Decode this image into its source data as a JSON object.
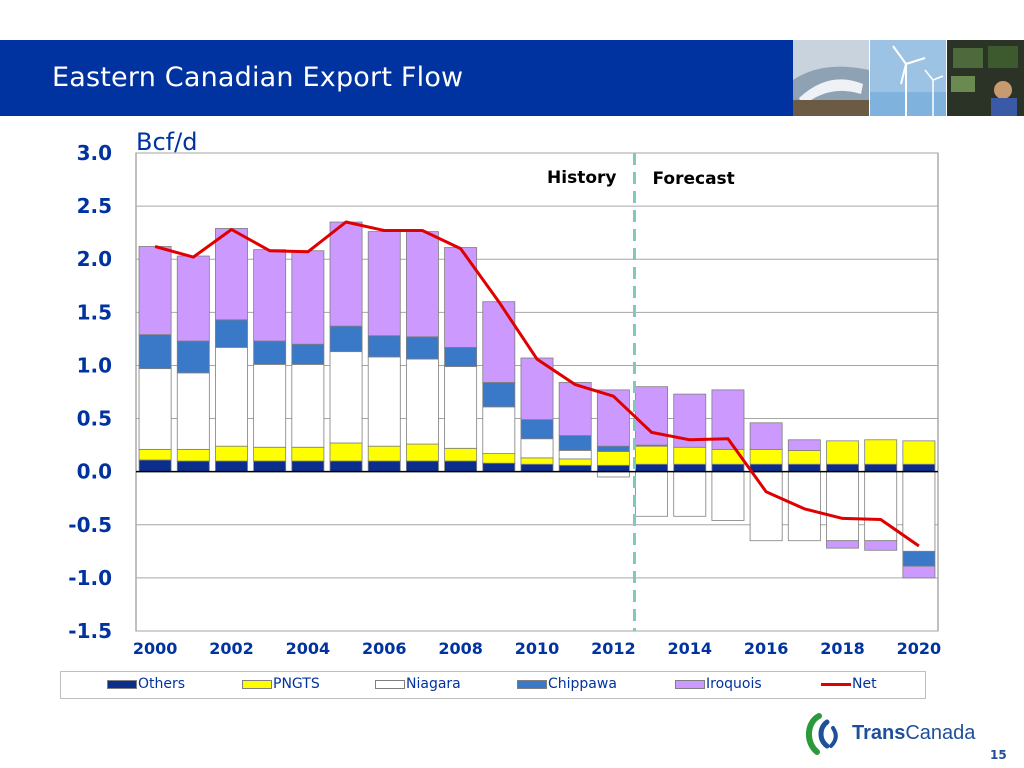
{
  "slide": {
    "title": "Eastern Canadian Export Flow",
    "page_number": "15",
    "header_color": "#0033a0"
  },
  "logo": {
    "text_bold": "Trans",
    "text_rest": "Canada",
    "icon": "transcanada-logo-icon"
  },
  "colors": {
    "Others": "#0b2e8c",
    "PNGTS": "#ffff00",
    "Niagara": "#ffffff",
    "Chippawa": "#3a78c8",
    "Iroquois": "#cc99ff",
    "Net": "#e00000",
    "divider": "#7fc8c0"
  },
  "chart_data": {
    "type": "bar",
    "stacked": true,
    "unit_label": "Bcf/d",
    "ylim": [
      -1.5,
      3.0
    ],
    "yticks": [
      "3.0",
      "2.5",
      "2.0",
      "1.5",
      "1.0",
      "0.5",
      "0.0",
      "-0.5",
      "-1.0",
      "-1.5"
    ],
    "ytick_values": [
      3.0,
      2.5,
      2.0,
      1.5,
      1.0,
      0.5,
      0.0,
      -0.5,
      -1.0,
      -1.5
    ],
    "years": [
      2000,
      2001,
      2002,
      2003,
      2004,
      2005,
      2006,
      2007,
      2008,
      2009,
      2010,
      2011,
      2012,
      2013,
      2014,
      2015,
      2016,
      2017,
      2018,
      2019,
      2020
    ],
    "xtick_labels": [
      "2000",
      "2002",
      "2004",
      "2006",
      "2008",
      "2010",
      "2012",
      "2014",
      "2016",
      "2018",
      "2020"
    ],
    "history_label": "History",
    "forecast_label": "Forecast",
    "divider_after_year": 2012,
    "grid": true,
    "legend_position": "bottom",
    "series": [
      {
        "name": "Others",
        "values": [
          0.11,
          0.1,
          0.1,
          0.1,
          0.1,
          0.1,
          0.1,
          0.1,
          0.1,
          0.08,
          0.07,
          0.06,
          0.06,
          0.07,
          0.07,
          0.07,
          0.07,
          0.07,
          0.07,
          0.07,
          0.07
        ]
      },
      {
        "name": "PNGTS",
        "values": [
          0.1,
          0.11,
          0.14,
          0.13,
          0.13,
          0.17,
          0.14,
          0.16,
          0.12,
          0.09,
          0.06,
          0.06,
          0.13,
          0.17,
          0.16,
          0.14,
          0.14,
          0.13,
          0.22,
          0.23,
          0.22
        ]
      },
      {
        "name": "Niagara",
        "values": [
          0.76,
          0.72,
          0.93,
          0.78,
          0.78,
          0.86,
          0.84,
          0.8,
          0.77,
          0.44,
          0.18,
          0.08,
          -0.05,
          -0.42,
          -0.42,
          -0.46,
          -0.65,
          -0.65,
          -0.65,
          -0.65,
          -0.75
        ]
      },
      {
        "name": "Chippawa",
        "values": [
          0.32,
          0.3,
          0.26,
          0.22,
          0.19,
          0.24,
          0.2,
          0.21,
          0.18,
          0.23,
          0.18,
          0.14,
          0.05,
          0.01,
          0.0,
          0.0,
          0.0,
          0.0,
          0.0,
          0.0,
          -0.14
        ]
      },
      {
        "name": "Iroquois",
        "values": [
          0.83,
          0.8,
          0.86,
          0.86,
          0.88,
          0.98,
          0.98,
          0.99,
          0.94,
          0.76,
          0.58,
          0.5,
          0.53,
          0.55,
          0.5,
          0.56,
          0.25,
          0.1,
          -0.07,
          -0.09,
          -0.11
        ]
      },
      {
        "name": "Net",
        "type": "line",
        "values": [
          2.12,
          2.02,
          2.28,
          2.08,
          2.07,
          2.35,
          2.27,
          2.27,
          2.1,
          1.6,
          1.06,
          0.82,
          0.71,
          0.37,
          0.3,
          0.31,
          -0.19,
          -0.35,
          -0.44,
          -0.45,
          -0.7
        ]
      }
    ]
  }
}
